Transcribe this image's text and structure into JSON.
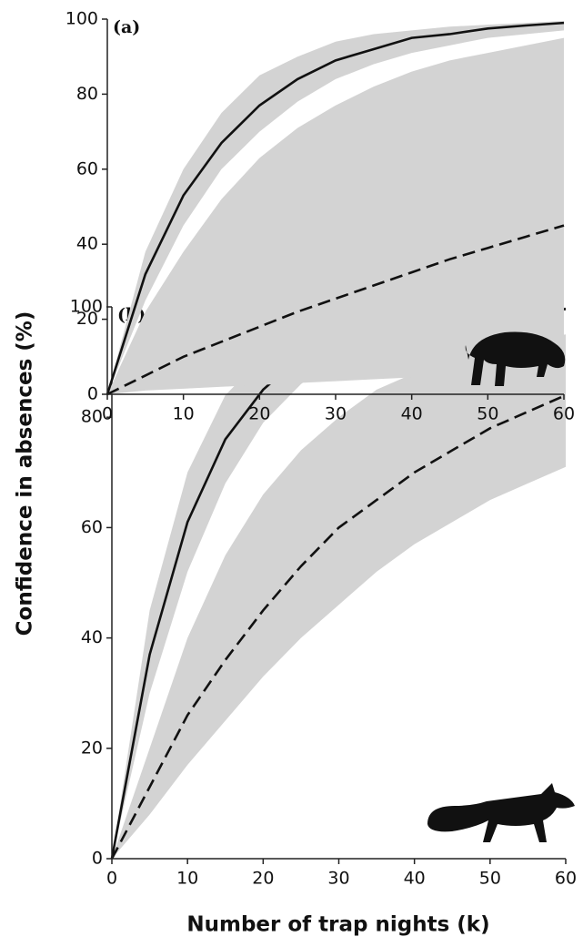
{
  "ylabel": "Confidence in absences (%)",
  "xlabel": "Number of trap nights (k)",
  "chart_data": [
    {
      "type": "line",
      "panel_label": "(a)",
      "x": [
        0,
        5,
        10,
        15,
        20,
        25,
        30,
        35,
        40,
        45,
        50,
        55,
        60
      ],
      "xlim": [
        0,
        60
      ],
      "xticks": [
        0,
        10,
        20,
        30,
        40,
        50,
        60
      ],
      "ylim": [
        0,
        100
      ],
      "yticks": [
        0,
        20,
        40,
        60,
        80,
        100
      ],
      "bands": [
        {
          "color": "#d3d3d3",
          "upper": [
            0,
            22,
            38,
            52,
            63,
            71,
            77,
            82,
            86,
            89,
            91,
            93,
            95
          ],
          "lower": [
            0,
            1,
            1.5,
            2,
            2.5,
            3,
            3.5,
            4,
            4.5,
            5,
            5.5,
            6,
            6
          ]
        },
        {
          "color": "#d3d3d3",
          "upper": [
            0,
            38,
            60,
            75,
            85,
            90,
            94,
            96,
            97,
            98,
            98.5,
            99,
            99.5
          ],
          "lower": [
            0,
            25,
            45,
            60,
            70,
            78,
            84,
            88,
            91,
            93,
            95,
            96,
            97
          ]
        }
      ],
      "series": [
        {
          "color": "#111111",
          "style": "solid",
          "values": [
            0,
            32,
            53,
            67,
            77,
            84,
            89,
            92,
            95,
            96,
            97.5,
            98.3,
            99
          ]
        },
        {
          "color": "#111111",
          "style": "dashed",
          "values": [
            0,
            5,
            10,
            14,
            18,
            22,
            25.5,
            29,
            32.5,
            36,
            39,
            42,
            45
          ]
        }
      ]
    },
    {
      "type": "line",
      "panel_label": "(b)",
      "x": [
        0,
        5,
        10,
        15,
        20,
        25,
        30,
        35,
        40,
        45,
        50,
        55,
        60
      ],
      "xlim": [
        0,
        60
      ],
      "xticks": [
        0,
        10,
        20,
        30,
        40,
        50,
        60
      ],
      "ylim": [
        0,
        100
      ],
      "yticks": [
        0,
        20,
        40,
        60,
        80,
        100
      ],
      "bands": [
        {
          "color": "#d3d3d3",
          "upper": [
            0,
            20,
            40,
            55,
            66,
            74,
            80,
            85,
            88,
            91,
            93,
            94,
            95
          ],
          "lower": [
            0,
            8,
            17,
            25,
            33,
            40,
            46,
            52,
            57,
            61,
            65,
            68,
            71
          ]
        },
        {
          "color": "#d3d3d3",
          "upper": [
            0,
            45,
            70,
            84,
            91,
            95,
            97,
            98.5,
            99,
            99.5,
            99.7,
            99.8,
            99.9
          ],
          "lower": [
            0,
            30,
            52,
            68,
            79,
            86,
            91,
            94,
            96,
            97.5,
            98.5,
            99,
            99.3
          ]
        }
      ],
      "series": [
        {
          "color": "#111111",
          "style": "solid",
          "values": [
            0,
            37,
            61,
            76,
            85,
            91,
            94,
            96.3,
            97.7,
            98.6,
            99.1,
            99.4,
            99.6
          ]
        },
        {
          "color": "#111111",
          "style": "dashed",
          "values": [
            0,
            13,
            26,
            36,
            45,
            53,
            60,
            65,
            70,
            74,
            78,
            81,
            84
          ]
        }
      ]
    }
  ]
}
